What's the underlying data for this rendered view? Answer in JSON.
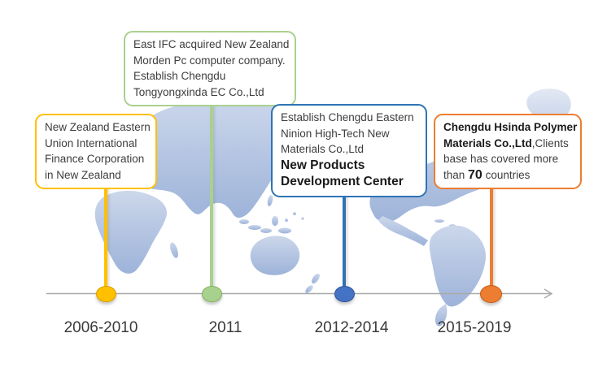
{
  "colors": {
    "axis": "#a8a8a8",
    "map_light": "#ccd7eb",
    "map_dark": "#9db3d9"
  },
  "timeline": {
    "milestones": [
      {
        "period": "2006-2010",
        "accent": "#FFC000",
        "dot_fill": "#FFC000",
        "dot_stroke": "#DB9E00",
        "note_lines": [
          {
            "segments": [
              {
                "text": "New Zealand Eastern",
                "bold": false
              }
            ]
          },
          {
            "segments": [
              {
                "text": "Union International",
                "bold": false
              }
            ]
          },
          {
            "segments": [
              {
                "text": "Finance Corporation",
                "bold": false
              }
            ]
          },
          {
            "segments": [
              {
                "text": "in New Zealand",
                "bold": false
              }
            ]
          }
        ]
      },
      {
        "period": "2011",
        "accent": "#A9D18E",
        "dot_fill": "#A9D18E",
        "dot_stroke": "#7FB35B",
        "note_lines": [
          {
            "segments": [
              {
                "text": "East IFC acquired New Zealand",
                "bold": false
              }
            ]
          },
          {
            "segments": [
              {
                "text": "Morden Pc computer company.",
                "bold": false
              }
            ]
          },
          {
            "segments": [
              {
                "text": "Establish Chengdu",
                "bold": false
              }
            ]
          },
          {
            "segments": [
              {
                "text": "Tongyongxinda EC Co.,Ltd",
                "bold": false
              }
            ]
          }
        ]
      },
      {
        "period": "2012-2014",
        "accent": "#2E74B5",
        "dot_fill": "#4472C4",
        "dot_stroke": "#2F5597",
        "note_lines": [
          {
            "segments": [
              {
                "text": "Establish Chengdu Eastern",
                "bold": false
              }
            ]
          },
          {
            "segments": [
              {
                "text": "Ninion High-Tech New",
                "bold": false
              }
            ]
          },
          {
            "segments": [
              {
                "text": "Materials Co.,Ltd",
                "bold": false
              }
            ]
          },
          {
            "segments": [
              {
                "text": "New Products",
                "bold": true
              }
            ]
          },
          {
            "segments": [
              {
                "text": "Development Center",
                "bold": true
              }
            ]
          }
        ]
      },
      {
        "period": "2015-2019",
        "accent": "#ED7D31",
        "dot_fill": "#ED7D31",
        "dot_stroke": "#C55A11",
        "note_lines": [
          {
            "segments": [
              {
                "text": "Chengdu Hsinda Polymer",
                "bold": true
              }
            ]
          },
          {
            "segments": [
              {
                "text": "Materials Co.,Ltd",
                "bold": true
              },
              {
                "text": ",Clients",
                "bold": false
              }
            ]
          },
          {
            "segments": [
              {
                "text": "base has covered more",
                "bold": false
              }
            ]
          },
          {
            "segments": [
              {
                "text": "than ",
                "bold": false
              },
              {
                "text": "70",
                "bold": true,
                "big": true
              },
              {
                "text": " countries",
                "bold": false
              }
            ]
          }
        ]
      }
    ]
  }
}
